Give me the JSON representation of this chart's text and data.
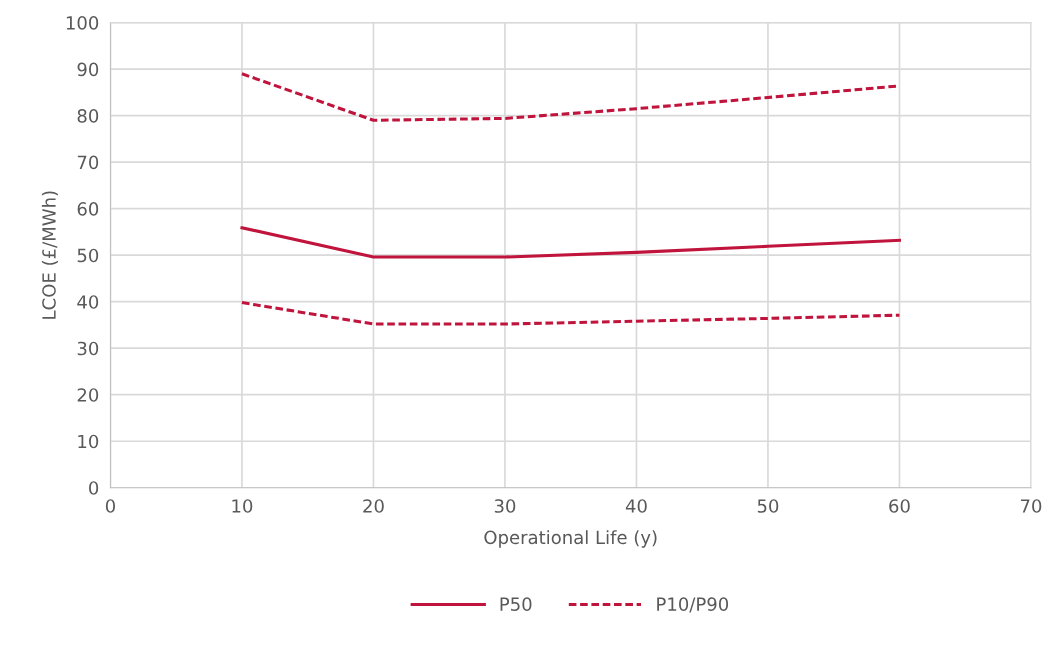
{
  "chart_data": {
    "type": "line",
    "xlabel": "Operational Life (y)",
    "ylabel": "LCOE (£/MWh)",
    "x": [
      10,
      20,
      30,
      40,
      50,
      60
    ],
    "series": [
      {
        "name": "P50",
        "color": "#c0143c",
        "line_style": "solid",
        "values": [
          55.9,
          49.6,
          49.6,
          50.6,
          51.9,
          53.2
        ]
      },
      {
        "name": "P10/P90",
        "color": "#c0143c",
        "line_style": "dashed",
        "values": [
          89.0,
          79.0,
          79.4,
          81.5,
          83.9,
          86.4
        ]
      },
      {
        "color": "#c0143c",
        "line_style": "dashed",
        "values": [
          39.8,
          35.2,
          35.2,
          35.8,
          36.4,
          37.1
        ]
      }
    ],
    "xlim": [
      0,
      70
    ],
    "xticks": [
      0,
      10,
      20,
      30,
      40,
      50,
      60,
      70
    ],
    "ylim": [
      0,
      100
    ],
    "yticks": [
      0,
      10,
      20,
      30,
      40,
      50,
      60,
      70,
      80,
      90,
      100
    ],
    "grid": true,
    "legend": "bottom",
    "marker": "none"
  }
}
